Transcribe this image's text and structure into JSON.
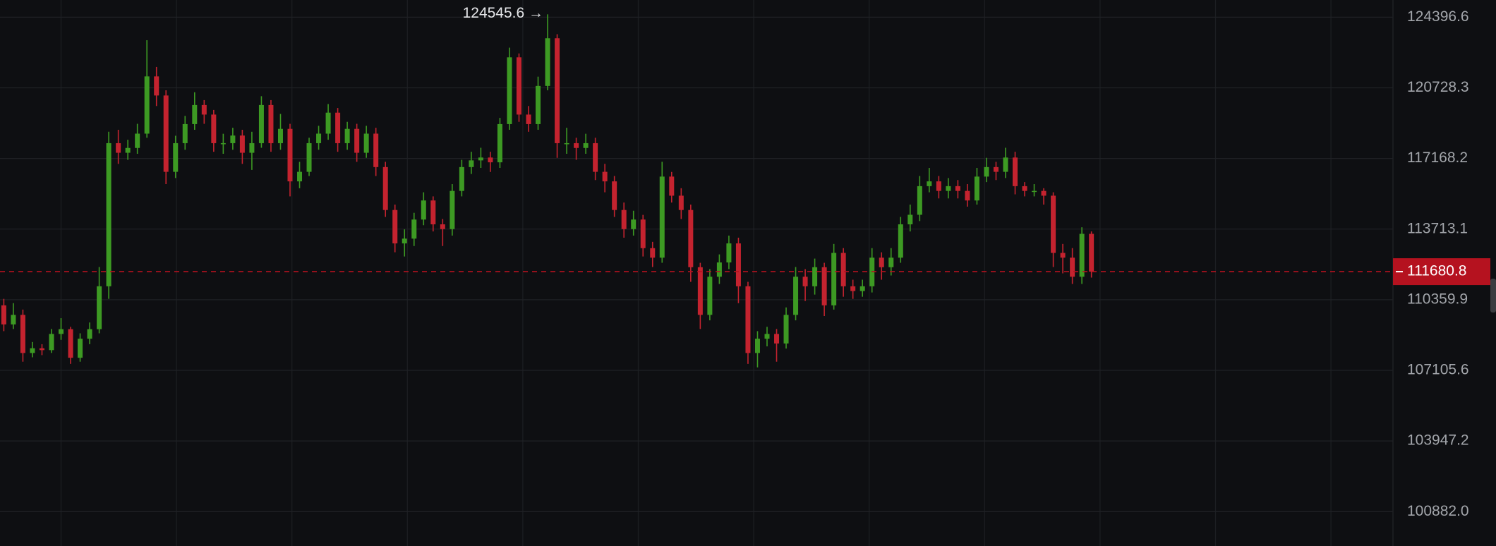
{
  "chart_data": {
    "type": "candlestick",
    "open": [
      110098,
      109212,
      109654,
      107897,
      108115,
      108028,
      108772,
      108992,
      107679,
      108552,
      108992,
      110991,
      117929,
      117451,
      117690,
      118406,
      121313,
      120336,
      116506,
      117929,
      118886,
      119851,
      119367,
      117929,
      117929,
      118311,
      117451,
      117929,
      119851,
      117929,
      118646,
      116036,
      116506,
      117929,
      118406,
      119464,
      117929,
      118646,
      117451,
      118406,
      116741,
      114637,
      113026,
      113255,
      114174,
      115101,
      113943,
      113713,
      115567,
      116741,
      117072,
      117214,
      116977,
      118886,
      122297,
      119367,
      118886,
      120824,
      123290,
      117929,
      117929,
      117690,
      117929,
      116506,
      116036,
      114637,
      113713,
      114174,
      112798,
      112344,
      116271,
      115334,
      114637,
      111891,
      109654,
      111440,
      112117,
      113026,
      110991,
      107897,
      108552,
      108772,
      108333,
      109654,
      111440,
      110991,
      111891,
      110098,
      112571,
      110991,
      110767,
      110991,
      112344,
      111891,
      112344,
      113943,
      114405,
      115801,
      116036,
      115567,
      115801,
      115567,
      115101,
      116271,
      116741,
      116506,
      117214,
      115801,
      115567,
      115567,
      115334,
      112571,
      112344,
      111440,
      113484
    ],
    "high": [
      110400,
      110200,
      109900,
      108400,
      108300,
      109000,
      109500,
      109100,
      108800,
      109300,
      111900,
      118500,
      118600,
      118100,
      118900,
      123190,
      121800,
      120600,
      118300,
      119300,
      120500,
      120100,
      119600,
      118400,
      118700,
      118600,
      118500,
      120300,
      120100,
      119400,
      118900,
      117000,
      118200,
      118800,
      119900,
      119700,
      119000,
      118900,
      118800,
      118700,
      117000,
      114900,
      113700,
      114500,
      115500,
      115300,
      114200,
      115900,
      117100,
      117500,
      117700,
      117500,
      119200,
      122800,
      122500,
      119800,
      121300,
      124545.6,
      123500,
      118700,
      118200,
      118400,
      118200,
      116900,
      116300,
      115000,
      114600,
      114400,
      113100,
      117000,
      116500,
      115700,
      114900,
      112100,
      111800,
      112500,
      113400,
      113300,
      111200,
      108900,
      109100,
      109000,
      110000,
      111900,
      111800,
      112300,
      112100,
      113000,
      112800,
      111300,
      111300,
      112800,
      112600,
      112800,
      114300,
      114900,
      116300,
      116700,
      116300,
      116200,
      116100,
      115900,
      116700,
      117200,
      117000,
      117700,
      117500,
      116000,
      115900,
      115700,
      115500,
      113000,
      112800,
      113800,
      113600
    ],
    "low": [
      108900,
      109000,
      107500,
      107700,
      107800,
      107900,
      108500,
      107400,
      107500,
      108300,
      108800,
      110400,
      116900,
      117100,
      117400,
      118200,
      119800,
      115900,
      116200,
      117600,
      118600,
      118900,
      117500,
      117400,
      117600,
      116900,
      116600,
      117700,
      117500,
      117600,
      115300,
      115700,
      116300,
      117600,
      118100,
      117500,
      117600,
      117000,
      117200,
      116300,
      114300,
      112600,
      112400,
      112900,
      113900,
      113600,
      112900,
      113400,
      115300,
      116400,
      116700,
      116500,
      116700,
      118600,
      119000,
      118500,
      118600,
      120600,
      117200,
      117400,
      117100,
      117400,
      116100,
      115500,
      114300,
      113300,
      113400,
      112400,
      111900,
      112100,
      115000,
      114200,
      111200,
      109000,
      109400,
      111100,
      111800,
      110200,
      107400,
      107241,
      108200,
      107500,
      108100,
      109400,
      110300,
      110600,
      109600,
      109900,
      110500,
      110400,
      110500,
      110700,
      111300,
      111500,
      112100,
      113600,
      114100,
      115500,
      115200,
      115200,
      115200,
      114800,
      114900,
      116000,
      116100,
      116200,
      115400,
      115300,
      115300,
      114900,
      111900,
      111600,
      111100,
      111100,
      111400
    ],
    "close": [
      109212,
      109654,
      107897,
      108115,
      108028,
      108772,
      108992,
      107679,
      108552,
      108992,
      110991,
      117929,
      117451,
      117690,
      118406,
      121313,
      120336,
      116506,
      117929,
      118886,
      119851,
      119367,
      117929,
      117929,
      118311,
      117451,
      117929,
      119851,
      117929,
      118646,
      116036,
      116506,
      117929,
      118406,
      119464,
      117929,
      118646,
      117451,
      118406,
      116741,
      114637,
      113026,
      113255,
      114174,
      115101,
      113943,
      113713,
      115567,
      116741,
      117072,
      117214,
      116977,
      118886,
      122297,
      119367,
      118886,
      120824,
      123290,
      117929,
      117929,
      117690,
      117929,
      116506,
      116036,
      114637,
      113713,
      114174,
      112798,
      112344,
      116271,
      115334,
      114637,
      111891,
      109654,
      111440,
      112117,
      113026,
      110991,
      107897,
      108552,
      108772,
      108333,
      109654,
      111440,
      110991,
      111891,
      110098,
      112571,
      110991,
      110767,
      110991,
      112344,
      111891,
      112344,
      113943,
      114405,
      115801,
      116036,
      115567,
      115801,
      115567,
      115101,
      116271,
      116741,
      116506,
      117214,
      115801,
      115567,
      115567,
      115334,
      112571,
      112344,
      111440,
      113484,
      111680.8
    ],
    "up_color": "#3d9a23",
    "down_color": "#c4232f",
    "ylim": [
      99424,
      125305
    ],
    "log_scale": true,
    "grid": true,
    "yticks": [
      {
        "value": 100882,
        "label": "100882.0"
      },
      103947.2,
      107105.6,
      110359.9,
      113713.1,
      117168.2,
      120728.3,
      124396.6
    ],
    "last_price": 111680.8,
    "last_price_color": "#b5121f",
    "annotations": [
      {
        "value": 124545.6,
        "label": "124545.6 →"
      }
    ]
  }
}
